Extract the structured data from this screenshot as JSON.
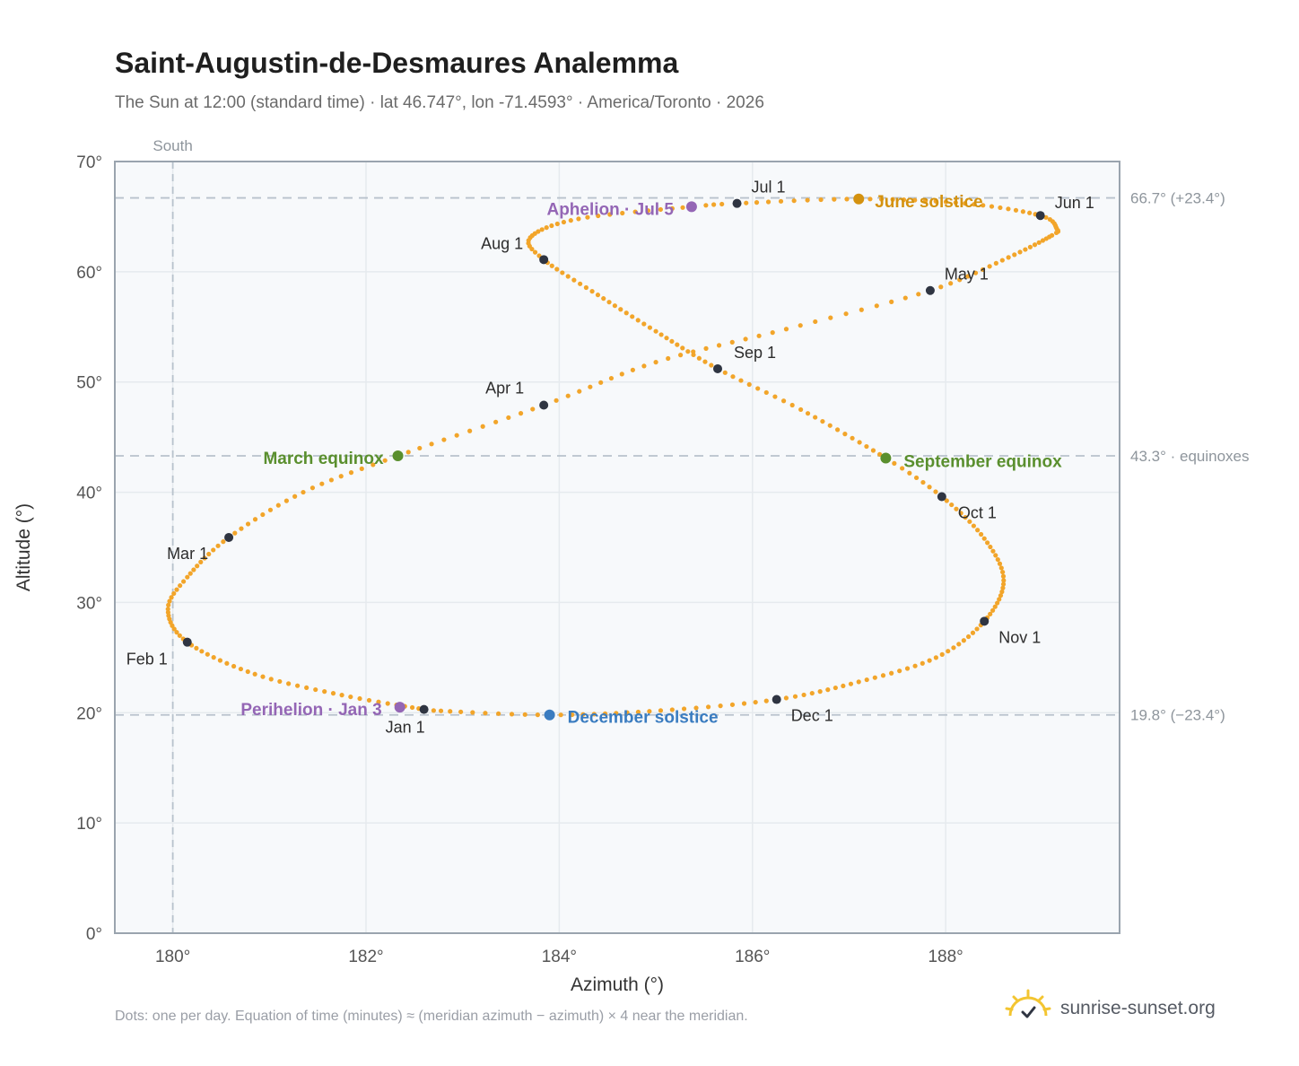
{
  "header": {
    "title": "Saint-Augustin-de-Desmaures Analemma",
    "subtitle": "The Sun at 12:00 (standard time) · lat 46.747°, lon -71.4593° · America/Toronto · 2026"
  },
  "footer": {
    "note": "Dots: one per day. Equation of time (minutes) ≈ (meridian azimuth − azimuth) × 4 near the meridian.",
    "brand": "sunrise-sunset.org",
    "brand_icon": "sun-logo-icon"
  },
  "colors": {
    "curve": "#f2a52a",
    "month_marker": "#2f3542",
    "equinox": "#5a8f2e",
    "june_solstice": "#d4920f",
    "december_solstice": "#3a7cc0",
    "apsis": "#9466b5",
    "reference_line": "#b8c2cc",
    "plot_bg": "#f7f9fb",
    "grid": "#e6eaee",
    "frame": "#9aa4ae"
  },
  "chart_data": {
    "type": "scatter",
    "xlabel": "Azimuth (°)",
    "ylabel": "Altitude (°)",
    "xlim": [
      179.4,
      189.8
    ],
    "ylim": [
      0,
      70
    ],
    "xticks": [
      180,
      182,
      184,
      186,
      188
    ],
    "xtick_labels": [
      "180°",
      "182°",
      "184°",
      "186°",
      "188°"
    ],
    "yticks": [
      0,
      10,
      20,
      30,
      40,
      50,
      60,
      70
    ],
    "ytick_labels": [
      "0°",
      "10°",
      "20°",
      "30°",
      "40°",
      "50°",
      "60°",
      "70°"
    ],
    "grid": true,
    "meridian": {
      "azimuth": 180,
      "label": "South"
    },
    "reference_lines": [
      {
        "altitude": 66.7,
        "label": "66.7° (+23.4°)"
      },
      {
        "altitude": 43.3,
        "label": "43.3° · equinoxes"
      },
      {
        "altitude": 19.8,
        "label": "19.8° (−23.4°)"
      }
    ],
    "month_markers": [
      {
        "label": "Jan 1",
        "azimuth": 182.6,
        "altitude": 20.3
      },
      {
        "label": "Feb 1",
        "azimuth": 180.15,
        "altitude": 26.4
      },
      {
        "label": "Mar 1",
        "azimuth": 180.58,
        "altitude": 35.9
      },
      {
        "label": "Apr 1",
        "azimuth": 183.84,
        "altitude": 47.9
      },
      {
        "label": "May 1",
        "azimuth": 187.84,
        "altitude": 58.3
      },
      {
        "label": "Jun 1",
        "azimuth": 188.98,
        "altitude": 65.1
      },
      {
        "label": "Jul 1",
        "azimuth": 185.84,
        "altitude": 66.2
      },
      {
        "label": "Aug 1",
        "azimuth": 183.84,
        "altitude": 61.1
      },
      {
        "label": "Sep 1",
        "azimuth": 185.64,
        "altitude": 51.2
      },
      {
        "label": "Oct 1",
        "azimuth": 187.96,
        "altitude": 39.6
      },
      {
        "label": "Nov 1",
        "azimuth": 188.4,
        "altitude": 28.3
      },
      {
        "label": "Dec 1",
        "azimuth": 186.25,
        "altitude": 21.2
      }
    ],
    "events": [
      {
        "label": "March equinox",
        "azimuth": 182.33,
        "altitude": 43.3,
        "color_key": "equinox"
      },
      {
        "label": "June solstice",
        "azimuth": 187.1,
        "altitude": 66.6,
        "color_key": "june_solstice"
      },
      {
        "label": "September equinox",
        "azimuth": 187.38,
        "altitude": 43.1,
        "color_key": "equinox"
      },
      {
        "label": "December solstice",
        "azimuth": 183.9,
        "altitude": 19.8,
        "color_key": "december_solstice"
      },
      {
        "label": "Perihelion · Jan 3",
        "azimuth": 182.35,
        "altitude": 20.5,
        "color_key": "apsis"
      },
      {
        "label": "Aphelion · Jul 5",
        "azimuth": 185.37,
        "altitude": 65.9,
        "color_key": "apsis"
      }
    ],
    "daily_points": {
      "interpolation": "one dot per day between successive anchors (Jan 1 to Dec 31)",
      "anchors": [
        {
          "day": 1,
          "azimuth": 182.6,
          "altitude": 20.3
        },
        {
          "day": 11,
          "azimuth": 181.75,
          "altitude": 21.6
        },
        {
          "day": 21,
          "azimuth": 180.85,
          "altitude": 23.5
        },
        {
          "day": 32,
          "azimuth": 180.15,
          "altitude": 26.4
        },
        {
          "day": 42,
          "azimuth": 179.95,
          "altitude": 29.4
        },
        {
          "day": 50,
          "azimuth": 180.15,
          "altitude": 32.3
        },
        {
          "day": 60,
          "azimuth": 180.58,
          "altitude": 35.9
        },
        {
          "day": 70,
          "azimuth": 181.35,
          "altitude": 40.0
        },
        {
          "day": 79,
          "azimuth": 182.33,
          "altitude": 43.3
        },
        {
          "day": 91,
          "azimuth": 183.84,
          "altitude": 47.9
        },
        {
          "day": 101,
          "azimuth": 185.0,
          "altitude": 51.8
        },
        {
          "day": 111,
          "azimuth": 186.35,
          "altitude": 54.8
        },
        {
          "day": 121,
          "azimuth": 187.84,
          "altitude": 58.3
        },
        {
          "day": 131,
          "azimuth": 188.65,
          "altitude": 61.3
        },
        {
          "day": 141,
          "azimuth": 189.1,
          "altitude": 63.3
        },
        {
          "day": 145,
          "azimuth": 189.15,
          "altitude": 63.9
        },
        {
          "day": 152,
          "azimuth": 188.98,
          "altitude": 65.1
        },
        {
          "day": 162,
          "azimuth": 188.2,
          "altitude": 66.2
        },
        {
          "day": 172,
          "azimuth": 187.1,
          "altitude": 66.6
        },
        {
          "day": 182,
          "azimuth": 185.84,
          "altitude": 66.2
        },
        {
          "day": 186,
          "azimuth": 185.37,
          "altitude": 65.9
        },
        {
          "day": 196,
          "azimuth": 184.2,
          "altitude": 64.8
        },
        {
          "day": 206,
          "azimuth": 183.7,
          "altitude": 63.1
        },
        {
          "day": 213,
          "azimuth": 183.84,
          "altitude": 61.1
        },
        {
          "day": 223,
          "azimuth": 184.4,
          "altitude": 57.9
        },
        {
          "day": 233,
          "azimuth": 185.0,
          "altitude": 54.6
        },
        {
          "day": 244,
          "azimuth": 185.64,
          "altitude": 51.2
        },
        {
          "day": 254,
          "azimuth": 186.5,
          "altitude": 47.5
        },
        {
          "day": 266,
          "azimuth": 187.38,
          "altitude": 43.1
        },
        {
          "day": 274,
          "azimuth": 187.96,
          "altitude": 39.6
        },
        {
          "day": 284,
          "azimuth": 188.4,
          "altitude": 35.8
        },
        {
          "day": 294,
          "azimuth": 188.6,
          "altitude": 32.0
        },
        {
          "day": 305,
          "azimuth": 188.4,
          "altitude": 28.3
        },
        {
          "day": 315,
          "azimuth": 187.9,
          "altitude": 25.0
        },
        {
          "day": 325,
          "azimuth": 187.1,
          "altitude": 22.8
        },
        {
          "day": 335,
          "azimuth": 186.25,
          "altitude": 21.2
        },
        {
          "day": 345,
          "azimuth": 185.05,
          "altitude": 20.2
        },
        {
          "day": 355,
          "azimuth": 183.9,
          "altitude": 19.8
        },
        {
          "day": 365,
          "azimuth": 182.7,
          "altitude": 20.2
        }
      ]
    }
  }
}
